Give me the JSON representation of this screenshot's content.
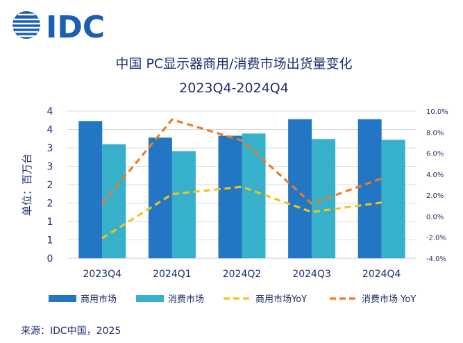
{
  "brand": {
    "logo_text": "IDC",
    "logo_color": "#1a5fb4"
  },
  "chart_data": {
    "type": "bar",
    "title": "中国 PC显示器商用/消费市场出货量变化",
    "subtitle": "2023Q4-2024Q4",
    "ylabel": "单位：百万台",
    "categories": [
      "2023Q4",
      "2024Q1",
      "2024Q2",
      "2024Q3",
      "2024Q4"
    ],
    "y_tick_labels": [
      "0",
      "1",
      "1",
      "2",
      "2",
      "3",
      "3",
      "4",
      "4"
    ],
    "ylim": [
      0,
      4
    ],
    "y2_tick_labels": [
      "-4.0%",
      "-2.0%",
      "0.0%",
      "2.0%",
      "4.0%",
      "6.0%",
      "8.0%",
      "10.0%"
    ],
    "y2lim": [
      -4,
      10
    ],
    "grid": true,
    "legend_position": "bottom",
    "series": [
      {
        "name": "商用市场",
        "type": "bar",
        "axis": "left",
        "color": "#2376c4",
        "values": [
          3.73,
          3.28,
          3.33,
          3.78,
          3.78
        ]
      },
      {
        "name": "消费市场",
        "type": "bar",
        "axis": "left",
        "color": "#36b0cb",
        "values": [
          3.1,
          2.91,
          3.39,
          3.24,
          3.22
        ]
      },
      {
        "name": "商用市场YoY",
        "type": "line",
        "axis": "right",
        "style": "dashed",
        "color": "#f2c318",
        "values": [
          -2.1,
          2.1,
          2.8,
          0.4,
          1.3
        ]
      },
      {
        "name": "消费市场 YoY",
        "type": "line",
        "axis": "right",
        "style": "dashed",
        "color": "#f07b25",
        "values": [
          1.2,
          9.2,
          7.2,
          1.2,
          3.6
        ]
      }
    ]
  },
  "source": "来源：IDC中国，2025"
}
